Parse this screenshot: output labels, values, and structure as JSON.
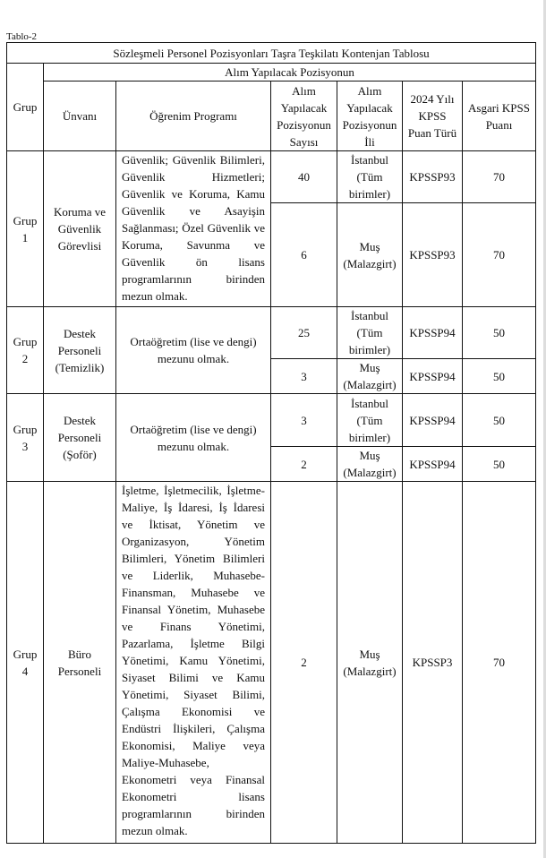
{
  "caption": "Tablo-2",
  "title": "Sözleşmeli Personel Pozisyonları Taşra Teşkilatı Kontenjan Tablosu",
  "group_header": "Alım Yapılacak Pozisyonun",
  "headers": {
    "grup": "Grup",
    "unvan": "Ünvanı",
    "program": "Öğrenim Programı",
    "sayi": "Alım Yapılacak Pozisyonun Sayısı",
    "il": "Alım Yapılacak Pozisyonun İli",
    "puan_turu": "2024 Yılı KPSS Puan Türü",
    "asgari": "Asgari KPSS Puanı"
  },
  "groups": [
    {
      "grup": "Grup 1",
      "unvan": "Koruma ve Güvenlik Görevlisi",
      "program": "Güvenlik; Güvenlik Bilimleri, Güvenlik Hizmetleri; Güvenlik ve Koruma, Kamu Güvenlik ve Asayişin Sağlanması; Özel Güvenlik ve Koruma, Savunma ve Güvenlik ön lisans programlarının birinden mezun olmak.",
      "rows": [
        {
          "sayi": "40",
          "il": "İstanbul (Tüm birimler)",
          "puan_turu": "KPSSP93",
          "asgari": "70"
        },
        {
          "sayi": "6",
          "il": "Muş (Malazgirt)",
          "puan_turu": "KPSSP93",
          "asgari": "70"
        }
      ]
    },
    {
      "grup": "Grup 2",
      "unvan": "Destek Personeli (Temizlik)",
      "program": "Ortaöğretim (lise ve dengi) mezunu olmak.",
      "rows": [
        {
          "sayi": "25",
          "il": "İstanbul (Tüm birimler)",
          "puan_turu": "KPSSP94",
          "asgari": "50"
        },
        {
          "sayi": "3",
          "il": "Muş (Malazgirt)",
          "puan_turu": "KPSSP94",
          "asgari": "50"
        }
      ]
    },
    {
      "grup": "Grup 3",
      "unvan": "Destek Personeli (Şoför)",
      "program": "Ortaöğretim (lise ve dengi) mezunu olmak.",
      "rows": [
        {
          "sayi": "3",
          "il": "İstanbul (Tüm birimler)",
          "puan_turu": "KPSSP94",
          "asgari": "50"
        },
        {
          "sayi": "2",
          "il": "Muş (Malazgirt)",
          "puan_turu": "KPSSP94",
          "asgari": "50"
        }
      ]
    },
    {
      "grup": "Grup 4",
      "unvan": "Büro Personeli",
      "program": "İşletme, İşletmecilik, İşletme-Maliye, İş İdaresi, İş İdaresi ve İktisat, Yönetim ve Organizasyon, Yönetim Bilimleri, Yönetim Bilimleri ve Liderlik, Muhasebe-Finansman, Muhasebe ve Finansal Yönetim, Muhasebe ve Finans Yönetimi, Pazarlama, İşletme Bilgi Yönetimi, Kamu Yönetimi, Siyaset Bilimi ve Kamu Yönetimi, Siyaset Bilimi, Çalışma Ekonomisi ve Endüstri İlişkileri, Çalışma Ekonomisi, Maliye veya Maliye-Muhasebe, Ekonometri veya Finansal Ekonometri lisans programlarının birinden mezun olmak.",
      "rows": [
        {
          "sayi": "2",
          "il": "Muş (Malazgirt)",
          "puan_turu": "KPSSP3",
          "asgari": "70"
        }
      ]
    }
  ]
}
